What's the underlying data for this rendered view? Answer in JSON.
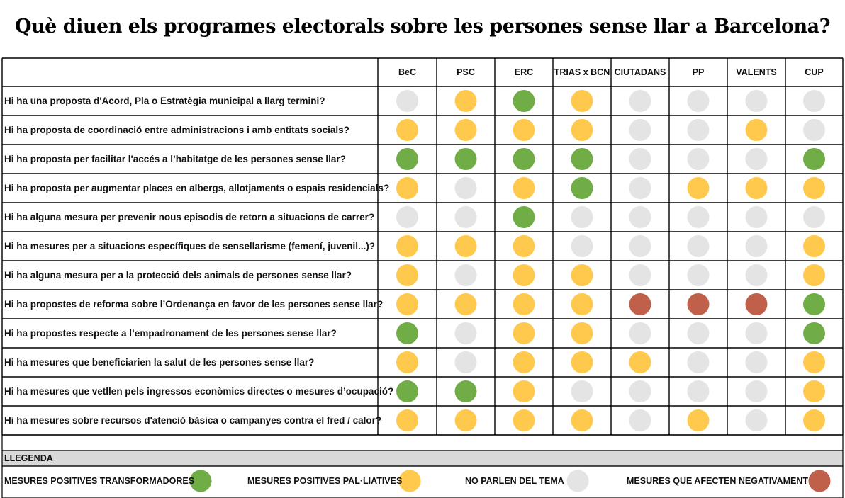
{
  "title": "Què diuen els programes electorals sobre les persones sense llar a Barcelona?",
  "colors": {
    "transformadores": "#70AD47",
    "paliatives": "#FFC94D",
    "no_parlen": "#E4E4E4",
    "negatives": "#C0604A"
  },
  "chart_data": {
    "type": "table",
    "title": "Què diuen els programes electorals sobre les persones sense llar a Barcelona?",
    "parties": [
      "BeC",
      "PSC",
      "ERC",
      "TRIAS x BCN",
      "CIUTADANS",
      "PP",
      "VALENTS",
      "CUP"
    ],
    "questions": [
      "Hi ha una proposta d'Acord, Pla o Estratègia municipal a llarg termini?",
      "Hi ha proposta de coordinació entre administracions i amb entitats socials?",
      "Hi ha proposta per facilitar l'accés a l’habitatge de les persones sense llar?",
      "Hi ha proposta per augmentar places en albergs, allotjaments o espais residencials?",
      "Hi ha alguna mesura per prevenir nous episodis de retorn a situacions de carrer?",
      "Hi ha mesures per a situacions específiques de sensellarisme (femení, juvenil...)?",
      "Hi ha alguna mesura per a la protecció dels animals de persones sense llar?",
      "Hi ha propostes de reforma sobre l’Ordenança en favor de les persones sense llar?",
      "Hi ha propostes respecte a l’empadronament de les persones sense llar?",
      "Hi ha mesures que beneficiarien la salut de les persones sense llar?",
      "Hi ha mesures que vetllen pels ingressos econòmics directes o mesures d’ocupació?",
      "Hi ha mesures sobre recursos d'atenció bàsica o campanyes contra el fred / calor?"
    ],
    "ratings": [
      [
        "no_parlen",
        "paliatives",
        "transformadores",
        "paliatives",
        "no_parlen",
        "no_parlen",
        "no_parlen",
        "no_parlen"
      ],
      [
        "paliatives",
        "paliatives",
        "paliatives",
        "paliatives",
        "no_parlen",
        "no_parlen",
        "paliatives",
        "no_parlen"
      ],
      [
        "transformadores",
        "transformadores",
        "transformadores",
        "transformadores",
        "no_parlen",
        "no_parlen",
        "no_parlen",
        "transformadores"
      ],
      [
        "paliatives",
        "no_parlen",
        "paliatives",
        "transformadores",
        "no_parlen",
        "paliatives",
        "paliatives",
        "paliatives"
      ],
      [
        "no_parlen",
        "no_parlen",
        "transformadores",
        "no_parlen",
        "no_parlen",
        "no_parlen",
        "no_parlen",
        "no_parlen"
      ],
      [
        "paliatives",
        "paliatives",
        "paliatives",
        "no_parlen",
        "no_parlen",
        "no_parlen",
        "no_parlen",
        "paliatives"
      ],
      [
        "paliatives",
        "no_parlen",
        "paliatives",
        "paliatives",
        "no_parlen",
        "no_parlen",
        "no_parlen",
        "paliatives"
      ],
      [
        "paliatives",
        "paliatives",
        "paliatives",
        "paliatives",
        "negatives",
        "negatives",
        "negatives",
        "transformadores"
      ],
      [
        "transformadores",
        "no_parlen",
        "paliatives",
        "paliatives",
        "no_parlen",
        "no_parlen",
        "no_parlen",
        "transformadores"
      ],
      [
        "paliatives",
        "no_parlen",
        "paliatives",
        "paliatives",
        "paliatives",
        "no_parlen",
        "no_parlen",
        "paliatives"
      ],
      [
        "transformadores",
        "transformadores",
        "paliatives",
        "no_parlen",
        "no_parlen",
        "no_parlen",
        "no_parlen",
        "paliatives"
      ],
      [
        "paliatives",
        "paliatives",
        "paliatives",
        "paliatives",
        "no_parlen",
        "paliatives",
        "no_parlen",
        "paliatives"
      ]
    ]
  },
  "legend": {
    "title": "LLEGENDA",
    "items": [
      {
        "key": "transformadores",
        "label": "MESURES POSITIVES TRANSFORMADORES"
      },
      {
        "key": "paliatives",
        "label": "MESURES POSITIVES PAL·LIATIVES"
      },
      {
        "key": "no_parlen",
        "label": "NO PARLEN DEL TEMA"
      },
      {
        "key": "negatives",
        "label": "MESURES QUE AFECTEN NEGATIVAMENT"
      }
    ]
  }
}
